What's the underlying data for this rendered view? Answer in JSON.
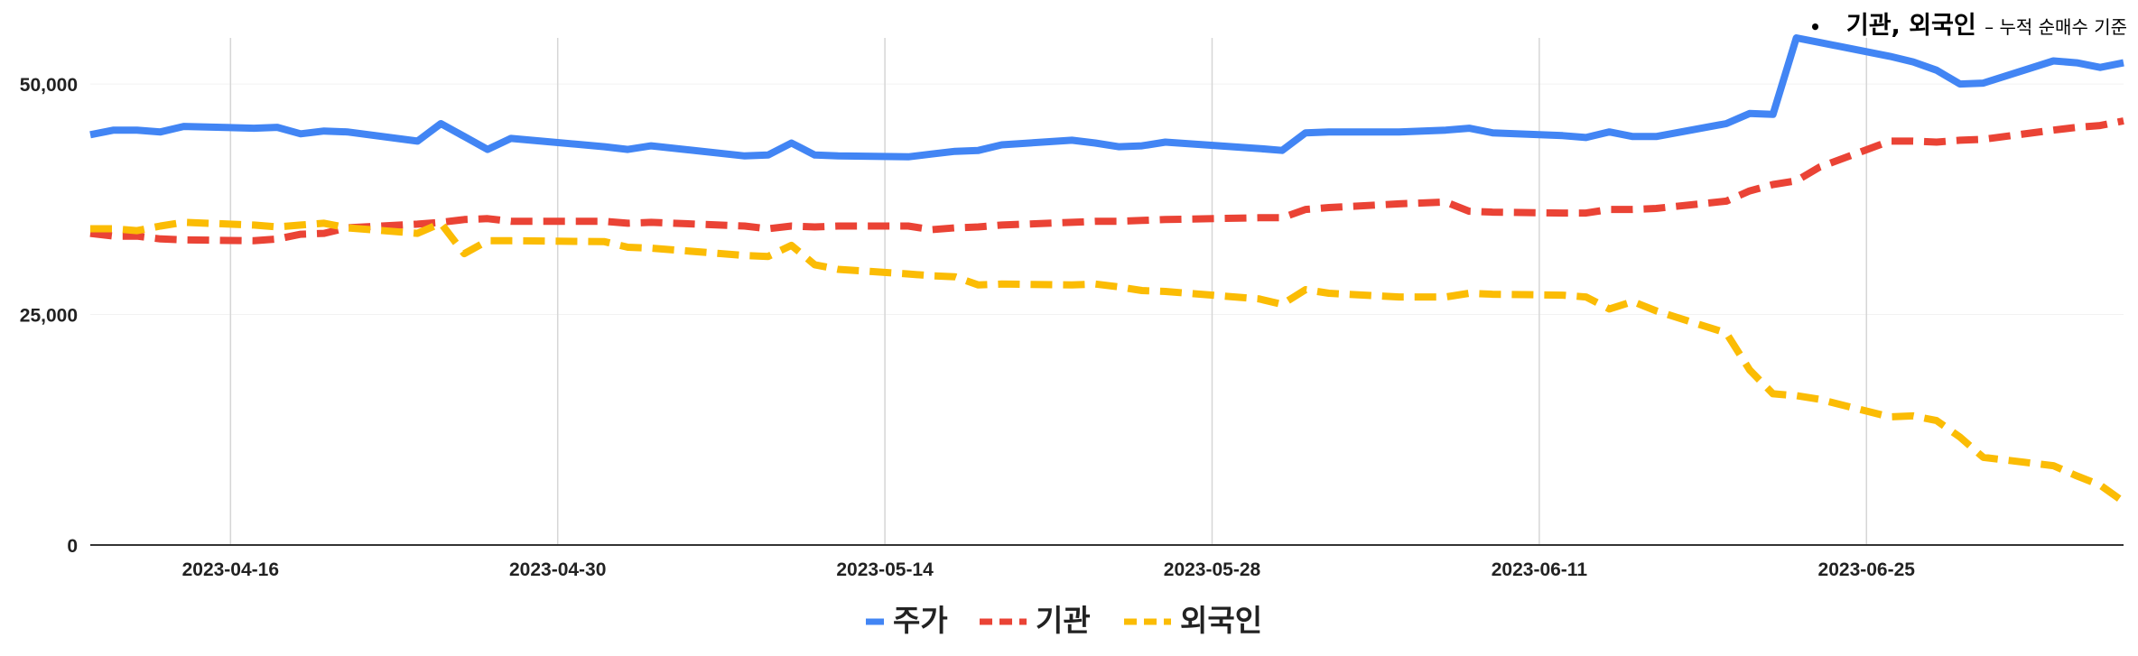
{
  "note": {
    "bullet": "•",
    "main": "기관, 외국인",
    "sub": "– 누적 순매수 기준"
  },
  "chart_data": {
    "type": "line",
    "title": "",
    "xlabel": "",
    "ylabel": "",
    "ylim": [
      0,
      55000
    ],
    "yticks": [
      0,
      25000,
      50000
    ],
    "ytick_labels": [
      "0",
      "25,000",
      "50,000"
    ],
    "xlim": [
      "2023-04-10",
      "2023-07-06"
    ],
    "xtick_labels": [
      "2023-04-16",
      "2023-04-30",
      "2023-05-14",
      "2023-05-28",
      "2023-06-11",
      "2023-06-25"
    ],
    "grid": "vertical",
    "legend": "bottom",
    "x": [
      "2023-04-10",
      "2023-04-11",
      "2023-04-12",
      "2023-04-13",
      "2023-04-14",
      "2023-04-17",
      "2023-04-18",
      "2023-04-19",
      "2023-04-20",
      "2023-04-21",
      "2023-04-24",
      "2023-04-25",
      "2023-04-26",
      "2023-04-27",
      "2023-04-28",
      "2023-05-02",
      "2023-05-03",
      "2023-05-04",
      "2023-05-08",
      "2023-05-09",
      "2023-05-10",
      "2023-05-11",
      "2023-05-12",
      "2023-05-15",
      "2023-05-16",
      "2023-05-17",
      "2023-05-18",
      "2023-05-19",
      "2023-05-22",
      "2023-05-23",
      "2023-05-24",
      "2023-05-25",
      "2023-05-26",
      "2023-05-30",
      "2023-05-31",
      "2023-06-01",
      "2023-06-02",
      "2023-06-05",
      "2023-06-07",
      "2023-06-08",
      "2023-06-09",
      "2023-06-12",
      "2023-06-13",
      "2023-06-14",
      "2023-06-15",
      "2023-06-16",
      "2023-06-19",
      "2023-06-20",
      "2023-06-21",
      "2023-06-22",
      "2023-06-23",
      "2023-06-26",
      "2023-06-27",
      "2023-06-28",
      "2023-06-29",
      "2023-06-30",
      "2023-07-03",
      "2023-07-04",
      "2023-07-05",
      "2023-07-06"
    ],
    "series": [
      {
        "name": "주가",
        "color": "#4285F4",
        "dash": "solid",
        "values": [
          44500,
          45000,
          45000,
          44800,
          45400,
          45200,
          45300,
          44600,
          44900,
          44800,
          43800,
          45700,
          44300,
          42900,
          44100,
          43200,
          42900,
          43300,
          42200,
          42300,
          43600,
          42300,
          42200,
          42100,
          42400,
          42700,
          42800,
          43400,
          43900,
          43600,
          43200,
          43300,
          43700,
          43000,
          42800,
          44700,
          44800,
          44800,
          45000,
          45200,
          44700,
          44400,
          44200,
          44800,
          44300,
          44300,
          45700,
          46800,
          46700,
          55000,
          54500,
          53000,
          52400,
          51500,
          50000,
          50100,
          52500,
          52300,
          51800,
          52300
        ]
      },
      {
        "name": "기관",
        "color": "#EA4335",
        "dash": "dashed",
        "values": [
          33800,
          33500,
          33500,
          33200,
          33100,
          33000,
          33200,
          33700,
          33800,
          34400,
          34800,
          35000,
          35300,
          35400,
          35100,
          35100,
          34900,
          35000,
          34600,
          34300,
          34600,
          34500,
          34600,
          34600,
          34200,
          34400,
          34500,
          34700,
          35000,
          35100,
          35100,
          35200,
          35300,
          35500,
          35500,
          36400,
          36600,
          37000,
          37200,
          36200,
          36100,
          36000,
          36000,
          36400,
          36400,
          36500,
          37300,
          38400,
          39100,
          39500,
          41000,
          43800,
          43800,
          43700,
          43900,
          44000,
          45000,
          45300,
          45500,
          46000
        ]
      },
      {
        "name": "외국인",
        "color": "#FBBC04",
        "dash": "dashed",
        "values": [
          34300,
          34300,
          34100,
          34600,
          35000,
          34700,
          34500,
          34700,
          34900,
          34400,
          33800,
          34900,
          31600,
          33000,
          33000,
          32900,
          32300,
          32200,
          31400,
          31300,
          32500,
          30400,
          29900,
          29400,
          29200,
          29100,
          28200,
          28300,
          28200,
          28300,
          28000,
          27600,
          27500,
          26700,
          26100,
          27700,
          27300,
          26900,
          26900,
          27300,
          27200,
          27100,
          26900,
          25600,
          26400,
          25400,
          23000,
          19000,
          16400,
          16200,
          15800,
          13900,
          14000,
          13500,
          11700,
          9500,
          8600,
          7500,
          6500,
          4700
        ]
      }
    ]
  }
}
